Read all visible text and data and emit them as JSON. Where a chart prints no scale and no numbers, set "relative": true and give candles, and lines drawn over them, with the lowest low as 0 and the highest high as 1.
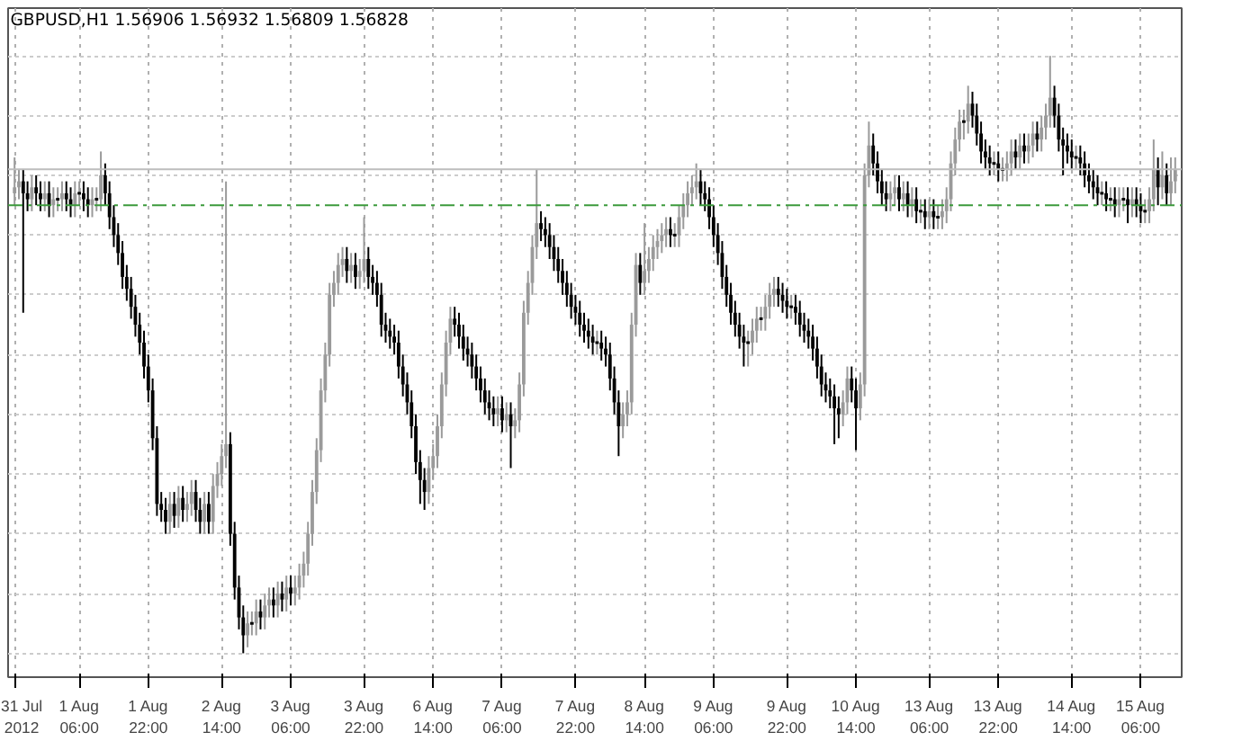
{
  "chart_data": {
    "type": "candlestick",
    "title": "GBPUSD,H1  1.56906 1.56932 1.56809 1.56828",
    "relative": true,
    "grid": true,
    "categories": [
      "31 Jul 2012",
      null,
      null,
      null,
      null,
      null,
      null,
      null,
      null,
      null,
      null,
      null,
      null,
      null,
      null,
      "1 Aug 06:00",
      null,
      null,
      null,
      null,
      null,
      null,
      null,
      null,
      null,
      null,
      null,
      null,
      null,
      null,
      null,
      "1 Aug 22:00",
      null,
      null,
      null,
      null,
      null,
      null,
      null,
      null,
      null,
      null,
      null,
      null,
      null,
      null,
      null,
      null,
      "2 Aug 14:00",
      null,
      null,
      null,
      null,
      null,
      null,
      null,
      null,
      null,
      null,
      null,
      null,
      null,
      null,
      null,
      "3 Aug 06:00",
      null,
      null,
      null,
      null,
      null,
      null,
      null,
      null,
      null,
      null,
      null,
      null,
      null,
      null,
      null,
      null,
      "3 Aug 22:00",
      null,
      null,
      null,
      null,
      null,
      null,
      null,
      null,
      null,
      null,
      null,
      null,
      null,
      null,
      null,
      "6 Aug 14:00",
      null,
      null,
      null,
      null,
      null,
      null,
      null,
      null,
      null,
      null,
      null,
      null,
      null,
      null,
      null,
      "7 Aug 06:00",
      null,
      null,
      null,
      null,
      null,
      null,
      null,
      null,
      null,
      null,
      null,
      null,
      null,
      null,
      null,
      null,
      "7 Aug 22:00",
      null,
      null,
      null,
      null,
      null,
      null,
      null,
      null,
      null,
      null,
      null,
      null,
      null,
      null,
      null,
      "8 Aug 14:00",
      null,
      null,
      null,
      null,
      null,
      null,
      null,
      null,
      null,
      null,
      null,
      null,
      null,
      null,
      null,
      "9 Aug 06:00",
      null,
      null,
      null,
      null,
      null,
      null,
      null,
      null,
      null,
      null,
      null,
      null,
      null,
      null,
      null,
      null,
      "9 Aug 22:00",
      null,
      null,
      null,
      null,
      null,
      null,
      null,
      null,
      null,
      null,
      null,
      null,
      null,
      null,
      null,
      "10 Aug 14:00",
      null,
      null,
      null,
      null,
      null,
      null,
      null,
      null,
      null,
      null,
      null,
      null,
      null,
      null,
      null,
      null,
      "13 Aug 06:00",
      null,
      null,
      null,
      null,
      null,
      null,
      null,
      null,
      null,
      null,
      null,
      null,
      null,
      null,
      null,
      "13 Aug 22:00",
      null,
      null,
      null,
      null,
      null,
      null,
      null,
      null,
      null,
      null,
      null,
      null,
      null,
      null,
      null,
      null,
      "14 Aug 14:00",
      null,
      null,
      null,
      null,
      null,
      null,
      null,
      null,
      null,
      null,
      null,
      null,
      null,
      null,
      null,
      "15 Aug 06:00",
      null,
      null,
      null,
      null,
      null,
      null,
      null,
      null
    ],
    "ohlc": [
      [
        0.77,
        0.83,
        0.75,
        0.78
      ],
      [
        0.78,
        0.81,
        0.76,
        0.79
      ],
      [
        0.79,
        0.81,
        0.57,
        0.77
      ],
      [
        0.77,
        0.79,
        0.74,
        0.76
      ],
      [
        0.76,
        0.8,
        0.74,
        0.78
      ],
      [
        0.78,
        0.8,
        0.75,
        0.77
      ],
      [
        0.77,
        0.79,
        0.74,
        0.76
      ],
      [
        0.76,
        0.79,
        0.74,
        0.77
      ],
      [
        0.77,
        0.79,
        0.73,
        0.75
      ],
      [
        0.75,
        0.78,
        0.73,
        0.76
      ],
      [
        0.76,
        0.78,
        0.74,
        0.76
      ],
      [
        0.76,
        0.79,
        0.74,
        0.77
      ],
      [
        0.77,
        0.79,
        0.74,
        0.76
      ],
      [
        0.76,
        0.78,
        0.73,
        0.75
      ],
      [
        0.75,
        0.79,
        0.73,
        0.77
      ],
      [
        0.77,
        0.79,
        0.75,
        0.77
      ],
      [
        0.77,
        0.79,
        0.74,
        0.76
      ],
      [
        0.76,
        0.78,
        0.73,
        0.75
      ],
      [
        0.75,
        0.78,
        0.73,
        0.76
      ],
      [
        0.76,
        0.78,
        0.74,
        0.76
      ],
      [
        0.76,
        0.84,
        0.74,
        0.8
      ],
      [
        0.8,
        0.82,
        0.75,
        0.77
      ],
      [
        0.77,
        0.79,
        0.71,
        0.73
      ],
      [
        0.73,
        0.75,
        0.68,
        0.7
      ],
      [
        0.7,
        0.72,
        0.65,
        0.67
      ],
      [
        0.67,
        0.69,
        0.61,
        0.63
      ],
      [
        0.63,
        0.65,
        0.59,
        0.61
      ],
      [
        0.61,
        0.63,
        0.56,
        0.58
      ],
      [
        0.58,
        0.6,
        0.53,
        0.55
      ],
      [
        0.55,
        0.57,
        0.5,
        0.52
      ],
      [
        0.52,
        0.54,
        0.46,
        0.48
      ],
      [
        0.48,
        0.5,
        0.42,
        0.44
      ],
      [
        0.44,
        0.46,
        0.34,
        0.36
      ],
      [
        0.36,
        0.38,
        0.23,
        0.25
      ],
      [
        0.25,
        0.27,
        0.22,
        0.24
      ],
      [
        0.24,
        0.26,
        0.2,
        0.22
      ],
      [
        0.22,
        0.27,
        0.2,
        0.25
      ],
      [
        0.25,
        0.27,
        0.21,
        0.23
      ],
      [
        0.23,
        0.28,
        0.21,
        0.26
      ],
      [
        0.26,
        0.28,
        0.22,
        0.24
      ],
      [
        0.24,
        0.27,
        0.22,
        0.25
      ],
      [
        0.25,
        0.29,
        0.23,
        0.27
      ],
      [
        0.27,
        0.29,
        0.22,
        0.24
      ],
      [
        0.24,
        0.26,
        0.2,
        0.22
      ],
      [
        0.22,
        0.27,
        0.2,
        0.25
      ],
      [
        0.25,
        0.27,
        0.2,
        0.22
      ],
      [
        0.22,
        0.3,
        0.2,
        0.28
      ],
      [
        0.28,
        0.32,
        0.26,
        0.3
      ],
      [
        0.3,
        0.35,
        0.28,
        0.33
      ],
      [
        0.33,
        0.79,
        0.31,
        0.35
      ],
      [
        0.35,
        0.37,
        0.18,
        0.2
      ],
      [
        0.2,
        0.22,
        0.09,
        0.11
      ],
      [
        0.11,
        0.13,
        0.04,
        0.06
      ],
      [
        0.06,
        0.08,
        0,
        0.03
      ],
      [
        0.03,
        0.07,
        0.01,
        0.05
      ],
      [
        0.05,
        0.07,
        0.03,
        0.05
      ],
      [
        0.05,
        0.09,
        0.03,
        0.07
      ],
      [
        0.07,
        0.09,
        0.04,
        0.06
      ],
      [
        0.06,
        0.1,
        0.04,
        0.08
      ],
      [
        0.08,
        0.11,
        0.06,
        0.09
      ],
      [
        0.09,
        0.11,
        0.06,
        0.08
      ],
      [
        0.08,
        0.12,
        0.06,
        0.1
      ],
      [
        0.1,
        0.12,
        0.07,
        0.09
      ],
      [
        0.09,
        0.13,
        0.07,
        0.11
      ],
      [
        0.11,
        0.13,
        0.08,
        0.1
      ],
      [
        0.1,
        0.13,
        0.08,
        0.11
      ],
      [
        0.11,
        0.15,
        0.09,
        0.13
      ],
      [
        0.13,
        0.17,
        0.11,
        0.15
      ],
      [
        0.15,
        0.22,
        0.13,
        0.2
      ],
      [
        0.2,
        0.29,
        0.18,
        0.27
      ],
      [
        0.27,
        0.36,
        0.25,
        0.34
      ],
      [
        0.34,
        0.46,
        0.32,
        0.44
      ],
      [
        0.44,
        0.52,
        0.42,
        0.5
      ],
      [
        0.5,
        0.62,
        0.48,
        0.6
      ],
      [
        0.6,
        0.64,
        0.58,
        0.62
      ],
      [
        0.62,
        0.67,
        0.6,
        0.65
      ],
      [
        0.65,
        0.68,
        0.63,
        0.66
      ],
      [
        0.66,
        0.68,
        0.62,
        0.64
      ],
      [
        0.64,
        0.67,
        0.62,
        0.65
      ],
      [
        0.65,
        0.67,
        0.61,
        0.63
      ],
      [
        0.63,
        0.66,
        0.61,
        0.64
      ],
      [
        0.64,
        0.73,
        0.62,
        0.66
      ],
      [
        0.66,
        0.68,
        0.61,
        0.63
      ],
      [
        0.63,
        0.65,
        0.6,
        0.62
      ],
      [
        0.62,
        0.64,
        0.58,
        0.6
      ],
      [
        0.6,
        0.62,
        0.53,
        0.55
      ],
      [
        0.55,
        0.57,
        0.52,
        0.54
      ],
      [
        0.54,
        0.56,
        0.51,
        0.53
      ],
      [
        0.53,
        0.55,
        0.5,
        0.52
      ],
      [
        0.52,
        0.54,
        0.46,
        0.48
      ],
      [
        0.48,
        0.5,
        0.43,
        0.45
      ],
      [
        0.45,
        0.47,
        0.4,
        0.42
      ],
      [
        0.42,
        0.44,
        0.36,
        0.38
      ],
      [
        0.38,
        0.4,
        0.3,
        0.32
      ],
      [
        0.32,
        0.34,
        0.25,
        0.29
      ],
      [
        0.29,
        0.31,
        0.24,
        0.27
      ],
      [
        0.27,
        0.33,
        0.25,
        0.31
      ],
      [
        0.31,
        0.35,
        0.29,
        0.33
      ],
      [
        0.33,
        0.4,
        0.31,
        0.38
      ],
      [
        0.38,
        0.47,
        0.36,
        0.45
      ],
      [
        0.45,
        0.54,
        0.43,
        0.52
      ],
      [
        0.52,
        0.58,
        0.5,
        0.56
      ],
      [
        0.56,
        0.58,
        0.53,
        0.55
      ],
      [
        0.55,
        0.57,
        0.51,
        0.53
      ],
      [
        0.53,
        0.55,
        0.49,
        0.51
      ],
      [
        0.51,
        0.53,
        0.48,
        0.5
      ],
      [
        0.5,
        0.52,
        0.46,
        0.48
      ],
      [
        0.48,
        0.5,
        0.44,
        0.46
      ],
      [
        0.46,
        0.48,
        0.42,
        0.44
      ],
      [
        0.44,
        0.46,
        0.4,
        0.42
      ],
      [
        0.42,
        0.44,
        0.39,
        0.41
      ],
      [
        0.41,
        0.43,
        0.38,
        0.4
      ],
      [
        0.4,
        0.43,
        0.38,
        0.41
      ],
      [
        0.41,
        0.43,
        0.37,
        0.39
      ],
      [
        0.39,
        0.42,
        0.37,
        0.4
      ],
      [
        0.4,
        0.42,
        0.31,
        0.38
      ],
      [
        0.38,
        0.41,
        0.36,
        0.39
      ],
      [
        0.39,
        0.47,
        0.37,
        0.45
      ],
      [
        0.45,
        0.59,
        0.43,
        0.57
      ],
      [
        0.57,
        0.64,
        0.55,
        0.62
      ],
      [
        0.62,
        0.7,
        0.6,
        0.68
      ],
      [
        0.68,
        0.81,
        0.66,
        0.72
      ],
      [
        0.72,
        0.74,
        0.69,
        0.71
      ],
      [
        0.71,
        0.73,
        0.68,
        0.7
      ],
      [
        0.7,
        0.72,
        0.66,
        0.68
      ],
      [
        0.68,
        0.7,
        0.64,
        0.66
      ],
      [
        0.66,
        0.68,
        0.62,
        0.64
      ],
      [
        0.64,
        0.66,
        0.6,
        0.62
      ],
      [
        0.62,
        0.64,
        0.58,
        0.6
      ],
      [
        0.6,
        0.62,
        0.56,
        0.58
      ],
      [
        0.58,
        0.6,
        0.55,
        0.57
      ],
      [
        0.57,
        0.59,
        0.53,
        0.55
      ],
      [
        0.55,
        0.57,
        0.52,
        0.54
      ],
      [
        0.54,
        0.56,
        0.51,
        0.53
      ],
      [
        0.53,
        0.55,
        0.5,
        0.52
      ],
      [
        0.52,
        0.54,
        0.5,
        0.52
      ],
      [
        0.52,
        0.54,
        0.49,
        0.51
      ],
      [
        0.51,
        0.53,
        0.48,
        0.5
      ],
      [
        0.5,
        0.52,
        0.44,
        0.46
      ],
      [
        0.46,
        0.48,
        0.4,
        0.42
      ],
      [
        0.42,
        0.44,
        0.33,
        0.38
      ],
      [
        0.38,
        0.42,
        0.36,
        0.4
      ],
      [
        0.4,
        0.44,
        0.38,
        0.42
      ],
      [
        0.42,
        0.57,
        0.4,
        0.55
      ],
      [
        0.55,
        0.67,
        0.53,
        0.65
      ],
      [
        0.65,
        0.67,
        0.6,
        0.62
      ],
      [
        0.62,
        0.72,
        0.6,
        0.64
      ],
      [
        0.64,
        0.68,
        0.62,
        0.66
      ],
      [
        0.66,
        0.7,
        0.64,
        0.68
      ],
      [
        0.68,
        0.71,
        0.66,
        0.69
      ],
      [
        0.69,
        0.72,
        0.67,
        0.7
      ],
      [
        0.7,
        0.73,
        0.68,
        0.71
      ],
      [
        0.71,
        0.73,
        0.68,
        0.7
      ],
      [
        0.7,
        0.72,
        0.68,
        0.7
      ],
      [
        0.7,
        0.75,
        0.68,
        0.73
      ],
      [
        0.73,
        0.77,
        0.71,
        0.75
      ],
      [
        0.75,
        0.79,
        0.73,
        0.77
      ],
      [
        0.77,
        0.8,
        0.75,
        0.78
      ],
      [
        0.78,
        0.82,
        0.76,
        0.79
      ],
      [
        0.79,
        0.81,
        0.75,
        0.77
      ],
      [
        0.77,
        0.79,
        0.74,
        0.76
      ],
      [
        0.76,
        0.78,
        0.71,
        0.73
      ],
      [
        0.73,
        0.75,
        0.68,
        0.7
      ],
      [
        0.7,
        0.72,
        0.65,
        0.67
      ],
      [
        0.67,
        0.69,
        0.61,
        0.63
      ],
      [
        0.63,
        0.65,
        0.58,
        0.6
      ],
      [
        0.6,
        0.62,
        0.55,
        0.57
      ],
      [
        0.57,
        0.59,
        0.53,
        0.55
      ],
      [
        0.55,
        0.57,
        0.51,
        0.53
      ],
      [
        0.53,
        0.55,
        0.48,
        0.52
      ],
      [
        0.52,
        0.54,
        0.48,
        0.52
      ],
      [
        0.52,
        0.56,
        0.5,
        0.54
      ],
      [
        0.54,
        0.58,
        0.52,
        0.56
      ],
      [
        0.56,
        0.58,
        0.54,
        0.56
      ],
      [
        0.56,
        0.6,
        0.54,
        0.58
      ],
      [
        0.58,
        0.62,
        0.56,
        0.6
      ],
      [
        0.6,
        0.63,
        0.58,
        0.61
      ],
      [
        0.61,
        0.63,
        0.58,
        0.6
      ],
      [
        0.6,
        0.62,
        0.57,
        0.59
      ],
      [
        0.59,
        0.61,
        0.56,
        0.58
      ],
      [
        0.58,
        0.6,
        0.56,
        0.58
      ],
      [
        0.58,
        0.6,
        0.55,
        0.57
      ],
      [
        0.57,
        0.59,
        0.53,
        0.55
      ],
      [
        0.55,
        0.57,
        0.52,
        0.54
      ],
      [
        0.54,
        0.56,
        0.51,
        0.53
      ],
      [
        0.53,
        0.55,
        0.49,
        0.51
      ],
      [
        0.51,
        0.53,
        0.46,
        0.48
      ],
      [
        0.48,
        0.5,
        0.43,
        0.45
      ],
      [
        0.45,
        0.47,
        0.42,
        0.44
      ],
      [
        0.44,
        0.46,
        0.41,
        0.43
      ],
      [
        0.43,
        0.45,
        0.35,
        0.41
      ],
      [
        0.41,
        0.43,
        0.36,
        0.4
      ],
      [
        0.4,
        0.44,
        0.38,
        0.42
      ],
      [
        0.42,
        0.48,
        0.4,
        0.46
      ],
      [
        0.46,
        0.48,
        0.42,
        0.44
      ],
      [
        0.44,
        0.46,
        0.34,
        0.41
      ],
      [
        0.41,
        0.47,
        0.39,
        0.45
      ],
      [
        0.45,
        0.82,
        0.43,
        0.8
      ],
      [
        0.8,
        0.89,
        0.78,
        0.85
      ],
      [
        0.85,
        0.87,
        0.8,
        0.82
      ],
      [
        0.82,
        0.84,
        0.77,
        0.79
      ],
      [
        0.79,
        0.81,
        0.75,
        0.77
      ],
      [
        0.77,
        0.79,
        0.74,
        0.76
      ],
      [
        0.76,
        0.79,
        0.74,
        0.77
      ],
      [
        0.77,
        0.8,
        0.75,
        0.78
      ],
      [
        0.78,
        0.8,
        0.74,
        0.76
      ],
      [
        0.76,
        0.79,
        0.74,
        0.77
      ],
      [
        0.77,
        0.79,
        0.73,
        0.75
      ],
      [
        0.75,
        0.78,
        0.73,
        0.76
      ],
      [
        0.76,
        0.78,
        0.72,
        0.74
      ],
      [
        0.74,
        0.76,
        0.72,
        0.74
      ],
      [
        0.74,
        0.76,
        0.71,
        0.73
      ],
      [
        0.73,
        0.76,
        0.71,
        0.74
      ],
      [
        0.74,
        0.76,
        0.71,
        0.73
      ],
      [
        0.73,
        0.75,
        0.71,
        0.73
      ],
      [
        0.73,
        0.76,
        0.71,
        0.74
      ],
      [
        0.74,
        0.78,
        0.72,
        0.76
      ],
      [
        0.76,
        0.84,
        0.74,
        0.82
      ],
      [
        0.82,
        0.88,
        0.8,
        0.86
      ],
      [
        0.86,
        0.91,
        0.84,
        0.89
      ],
      [
        0.89,
        0.91,
        0.86,
        0.89
      ],
      [
        0.89,
        0.95,
        0.87,
        0.92
      ],
      [
        0.92,
        0.94,
        0.88,
        0.9
      ],
      [
        0.9,
        0.92,
        0.85,
        0.87
      ],
      [
        0.87,
        0.89,
        0.82,
        0.84
      ],
      [
        0.84,
        0.86,
        0.81,
        0.83
      ],
      [
        0.83,
        0.85,
        0.8,
        0.82
      ],
      [
        0.82,
        0.84,
        0.8,
        0.82
      ],
      [
        0.82,
        0.84,
        0.79,
        0.81
      ],
      [
        0.81,
        0.83,
        0.79,
        0.81
      ],
      [
        0.81,
        0.84,
        0.79,
        0.82
      ],
      [
        0.82,
        0.86,
        0.8,
        0.84
      ],
      [
        0.84,
        0.86,
        0.81,
        0.83
      ],
      [
        0.83,
        0.87,
        0.81,
        0.85
      ],
      [
        0.85,
        0.87,
        0.82,
        0.84
      ],
      [
        0.84,
        0.87,
        0.82,
        0.85
      ],
      [
        0.85,
        0.89,
        0.83,
        0.87
      ],
      [
        0.87,
        0.89,
        0.84,
        0.86
      ],
      [
        0.86,
        0.9,
        0.84,
        0.88
      ],
      [
        0.88,
        0.92,
        0.86,
        0.9
      ],
      [
        0.9,
        1,
        0.88,
        0.93
      ],
      [
        0.93,
        0.95,
        0.88,
        0.9
      ],
      [
        0.9,
        0.92,
        0.84,
        0.86
      ],
      [
        0.86,
        0.88,
        0.8,
        0.85
      ],
      [
        0.85,
        0.87,
        0.82,
        0.84
      ],
      [
        0.84,
        0.86,
        0.81,
        0.83
      ],
      [
        0.83,
        0.85,
        0.81,
        0.83
      ],
      [
        0.83,
        0.85,
        0.8,
        0.82
      ],
      [
        0.82,
        0.84,
        0.78,
        0.8
      ],
      [
        0.8,
        0.82,
        0.77,
        0.79
      ],
      [
        0.79,
        0.81,
        0.76,
        0.78
      ],
      [
        0.78,
        0.8,
        0.75,
        0.77
      ],
      [
        0.77,
        0.79,
        0.75,
        0.77
      ],
      [
        0.77,
        0.79,
        0.74,
        0.76
      ],
      [
        0.76,
        0.78,
        0.74,
        0.76
      ],
      [
        0.76,
        0.78,
        0.73,
        0.75
      ],
      [
        0.75,
        0.78,
        0.73,
        0.76
      ],
      [
        0.76,
        0.78,
        0.74,
        0.76
      ],
      [
        0.76,
        0.78,
        0.72,
        0.75
      ],
      [
        0.75,
        0.78,
        0.73,
        0.76
      ],
      [
        0.76,
        0.78,
        0.73,
        0.75
      ],
      [
        0.75,
        0.77,
        0.72,
        0.74
      ],
      [
        0.74,
        0.76,
        0.72,
        0.74
      ],
      [
        0.74,
        0.78,
        0.72,
        0.76
      ],
      [
        0.76,
        0.86,
        0.74,
        0.81
      ],
      [
        0.81,
        0.83,
        0.75,
        0.78
      ],
      [
        0.78,
        0.84,
        0.76,
        0.8
      ],
      [
        0.8,
        0.82,
        0.75,
        0.77
      ],
      [
        0.77,
        0.83,
        0.75,
        0.79
      ],
      [
        0.79,
        0.83,
        0.77,
        0.81
      ]
    ],
    "ref_lines": [
      {
        "axis": "y",
        "value": 0.75,
        "color": "#3c9a3c",
        "line_style": "dashed"
      },
      {
        "axis": "y",
        "value": 0.81,
        "color": "#bdbdbd",
        "line_style": "solid"
      }
    ]
  }
}
